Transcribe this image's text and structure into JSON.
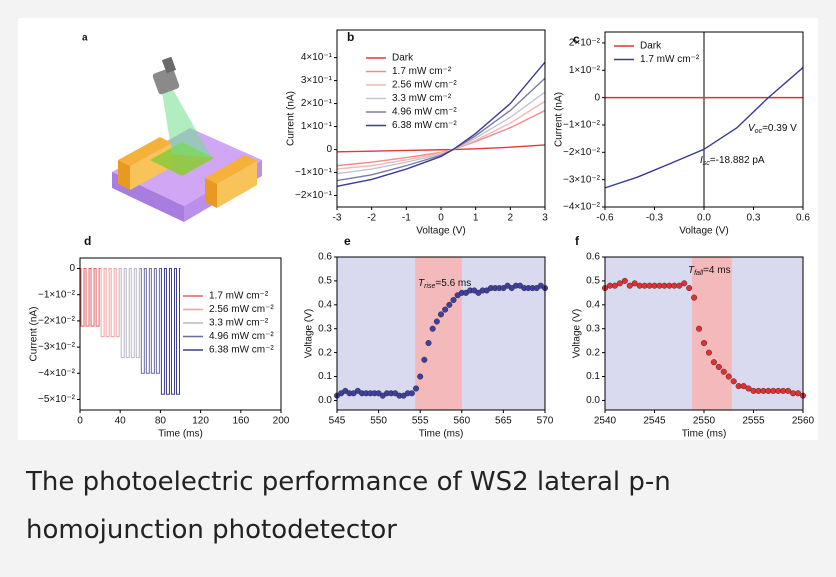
{
  "chart_data": [
    {
      "type": "line",
      "label": "b",
      "xlabel": "Voltage (V)",
      "ylabel": "Current (nA)",
      "xlim": [
        -3,
        3
      ],
      "ylim": [
        -0.25,
        0.52
      ],
      "xticks": [
        -3,
        -2,
        -1,
        0,
        1,
        2,
        3
      ],
      "yticks": [
        {
          "value": 0.4,
          "label": "4×10⁻¹"
        },
        {
          "value": 0.3,
          "label": "3×10⁻¹"
        },
        {
          "value": 0.2,
          "label": "2×10⁻¹"
        },
        {
          "value": 0.1,
          "label": "1×10⁻¹"
        },
        0,
        {
          "value": -0.1,
          "label": "−1×10⁻¹"
        },
        {
          "value": -0.2,
          "label": "−2×10⁻¹"
        }
      ],
      "x": [
        -3,
        -2,
        -1,
        0,
        0.35,
        1,
        2,
        3
      ],
      "series": [
        {
          "name": "Dark",
          "color": "#e03a3a",
          "values": [
            -0.01,
            -0.007,
            -0.004,
            -0.001,
            0,
            0.003,
            0.01,
            0.02
          ]
        },
        {
          "name": "1.7 mW cm⁻²",
          "color": "#f08a8a",
          "values": [
            -0.07,
            -0.055,
            -0.035,
            -0.012,
            0,
            0.035,
            0.095,
            0.17
          ]
        },
        {
          "name": "2.56 mW cm⁻²",
          "color": "#f4b7b7",
          "values": [
            -0.085,
            -0.07,
            -0.045,
            -0.015,
            0,
            0.04,
            0.115,
            0.21
          ]
        },
        {
          "name": "3.3 mW cm⁻²",
          "color": "#c4c4d0",
          "values": [
            -0.105,
            -0.085,
            -0.055,
            -0.02,
            0,
            0.05,
            0.14,
            0.25
          ]
        },
        {
          "name": "4.96 mW cm⁻²",
          "color": "#7a7aa8",
          "values": [
            -0.135,
            -0.11,
            -0.07,
            -0.025,
            0,
            0.06,
            0.17,
            0.31
          ]
        },
        {
          "name": "6.38 mW cm⁻²",
          "color": "#3c3c8c",
          "values": [
            -0.16,
            -0.13,
            -0.085,
            -0.03,
            0,
            0.07,
            0.2,
            0.38
          ]
        }
      ]
    },
    {
      "type": "line",
      "label": "c",
      "xlabel": "Voltage (V)",
      "ylabel": "Current (nA)",
      "xlim": [
        -0.6,
        0.6
      ],
      "ylim": [
        -0.04,
        0.024
      ],
      "xticks": [
        -0.6,
        -0.3,
        {
          "value": 0,
          "label": "0.0"
        },
        0.3,
        0.6
      ],
      "yticks": [
        {
          "value": 0.02,
          "label": "2×10⁻²"
        },
        {
          "value": 0.01,
          "label": "1×10⁻²"
        },
        0,
        {
          "value": -0.01,
          "label": "−1×10⁻²"
        },
        {
          "value": -0.02,
          "label": "−2×10⁻²"
        },
        {
          "value": -0.03,
          "label": "−3×10⁻²"
        },
        {
          "value": -0.04,
          "label": "−4×10⁻²"
        }
      ],
      "vline": 0,
      "series": [
        {
          "name": "Dark",
          "color": "#e03030",
          "x": [
            -0.6,
            0,
            0.6
          ],
          "values": [
            0,
            0,
            0
          ]
        },
        {
          "name": "1.7 mW cm⁻²",
          "color": "#3a3a90",
          "x": [
            -0.6,
            -0.4,
            -0.2,
            0,
            0.2,
            0.39,
            0.6
          ],
          "values": [
            -0.033,
            -0.029,
            -0.024,
            -0.0189,
            -0.011,
            0,
            0.011
          ]
        }
      ],
      "annotations": [
        [
          "V",
          "oc",
          "=0.39 V"
        ],
        [
          "I",
          "sc",
          "=-18.882 pA"
        ]
      ]
    },
    {
      "type": "line",
      "label": "d",
      "xlabel": "Time (ms)",
      "ylabel": "Current (nA)",
      "xlim": [
        0,
        200
      ],
      "ylim": [
        -0.054,
        0.004
      ],
      "xticks": [
        0,
        40,
        80,
        120,
        160,
        200
      ],
      "yticks": [
        0,
        {
          "value": -0.01,
          "label": "−1×10⁻²"
        },
        {
          "value": -0.02,
          "label": "−2×10⁻²"
        },
        {
          "value": -0.03,
          "label": "−3×10⁻²"
        },
        {
          "value": -0.04,
          "label": "−4×10⁻²"
        },
        {
          "value": -0.05,
          "label": "−5×10⁻²"
        }
      ],
      "series": [
        {
          "name": "1.7 mW cm⁻²",
          "color": "#e06060",
          "x": [
            0,
            1,
            1,
            4,
            4,
            6,
            6,
            9,
            9,
            11,
            11,
            14,
            14,
            16,
            16,
            19,
            19,
            20
          ],
          "values": [
            0,
            0,
            -0.022,
            -0.022,
            0,
            0,
            -0.022,
            -0.022,
            0,
            0,
            -0.022,
            -0.022,
            0,
            0,
            -0.022,
            -0.022,
            0,
            0
          ]
        },
        {
          "name": "2.56 mW cm⁻²",
          "color": "#f0a0a0",
          "x": [
            20,
            21,
            21,
            24,
            24,
            26,
            26,
            29,
            29,
            31,
            31,
            34,
            34,
            36,
            36,
            39,
            39,
            40
          ],
          "values": [
            0,
            0,
            -0.026,
            -0.026,
            0,
            0,
            -0.026,
            -0.026,
            0,
            0,
            -0.026,
            -0.026,
            0,
            0,
            -0.026,
            -0.026,
            0,
            0
          ]
        },
        {
          "name": "3.3 mW cm⁻²",
          "color": "#b8b8c8",
          "x": [
            40,
            41,
            41,
            44,
            44,
            46,
            46,
            49,
            49,
            51,
            51,
            54,
            54,
            56,
            56,
            59,
            59,
            60
          ],
          "values": [
            0,
            0,
            -0.034,
            -0.034,
            0,
            0,
            -0.034,
            -0.034,
            0,
            0,
            -0.034,
            -0.034,
            0,
            0,
            -0.034,
            -0.034,
            0,
            0
          ]
        },
        {
          "name": "4.96 mW cm⁻²",
          "color": "#6a6aa0",
          "x": [
            60,
            61,
            61,
            64,
            64,
            66,
            66,
            69,
            69,
            71,
            71,
            74,
            74,
            76,
            76,
            79,
            79,
            80
          ],
          "values": [
            0,
            0,
            -0.04,
            -0.04,
            0,
            0,
            -0.04,
            -0.04,
            0,
            0,
            -0.04,
            -0.04,
            0,
            0,
            -0.04,
            -0.04,
            0,
            0
          ]
        },
        {
          "name": "6.38 mW cm⁻²",
          "color": "#3a3a90",
          "x": [
            80,
            81,
            81,
            84,
            84,
            86,
            86,
            89,
            89,
            91,
            91,
            94,
            94,
            96,
            96,
            99,
            99,
            100
          ],
          "values": [
            0,
            0,
            -0.048,
            -0.048,
            0,
            0,
            -0.048,
            -0.048,
            0,
            0,
            -0.048,
            -0.048,
            0,
            0,
            -0.048,
            -0.048,
            0,
            0
          ]
        }
      ]
    },
    {
      "type": "scatter",
      "label": "e",
      "xlabel": "Time (ms)",
      "ylabel": "Voltage (V)",
      "xlim": [
        545,
        570
      ],
      "ylim": [
        -0.04,
        0.6
      ],
      "xticks": [
        545,
        550,
        555,
        560,
        565,
        570
      ],
      "yticks": [
        {
          "value": 0,
          "label": "0.0"
        },
        0.1,
        0.2,
        0.3,
        0.4,
        0.5,
        0.6
      ],
      "background": "#d9d9ef",
      "highlight": [
        554.4,
        560
      ],
      "highlight_color": "#f3b9bb",
      "annotations": [
        [
          "T",
          "rise",
          "=5.6 ms"
        ]
      ],
      "x": [
        545,
        545.5,
        546,
        546.5,
        547,
        547.5,
        548,
        548.5,
        549,
        549.5,
        550,
        550.5,
        551,
        551.5,
        552,
        552.5,
        553,
        553.5,
        554,
        554.5,
        555,
        555.5,
        556,
        556.5,
        557,
        557.5,
        558,
        558.5,
        559,
        559.5,
        560,
        560.5,
        561,
        561.5,
        562,
        562.5,
        563,
        563.5,
        564,
        564.5,
        565,
        565.5,
        566,
        566.5,
        567,
        567.5,
        568,
        568.5,
        569,
        569.5,
        570
      ],
      "series": [
        {
          "color": "#3f3fa0",
          "values": [
            0.02,
            0.03,
            0.04,
            0.03,
            0.03,
            0.04,
            0.03,
            0.03,
            0.03,
            0.03,
            0.03,
            0.02,
            0.03,
            0.03,
            0.03,
            0.02,
            0.02,
            0.03,
            0.03,
            0.05,
            0.1,
            0.17,
            0.24,
            0.3,
            0.33,
            0.36,
            0.38,
            0.4,
            0.42,
            0.44,
            0.45,
            0.45,
            0.46,
            0.46,
            0.45,
            0.46,
            0.46,
            0.47,
            0.47,
            0.47,
            0.47,
            0.48,
            0.47,
            0.48,
            0.48,
            0.47,
            0.47,
            0.47,
            0.47,
            0.48,
            0.47
          ]
        }
      ]
    },
    {
      "type": "scatter",
      "label": "f",
      "xlabel": "Time (ms)",
      "ylabel": "Voltage (V)",
      "xlim": [
        2540,
        2560
      ],
      "ylim": [
        -0.04,
        0.6
      ],
      "xticks": [
        2540,
        2545,
        2550,
        2555,
        2560
      ],
      "yticks": [
        {
          "value": 0,
          "label": "0.0"
        },
        0.1,
        0.2,
        0.3,
        0.4,
        0.5,
        0.6
      ],
      "background": "#d9d9ef",
      "highlight": [
        2548.8,
        2552.8
      ],
      "highlight_color": "#f3b9bb",
      "annotations": [
        [
          "T",
          "fall",
          "=4 ms"
        ]
      ],
      "x": [
        2540,
        2540.5,
        2541,
        2541.5,
        2542,
        2542.5,
        2543,
        2543.5,
        2544,
        2544.5,
        2545,
        2545.5,
        2546,
        2546.5,
        2547,
        2547.5,
        2548,
        2548.5,
        2549,
        2549.5,
        2550,
        2550.5,
        2551,
        2551.5,
        2552,
        2552.5,
        2553,
        2553.5,
        2554,
        2554.5,
        2555,
        2555.5,
        2556,
        2556.5,
        2557,
        2557.5,
        2558,
        2558.5,
        2559,
        2559.5,
        2560
      ],
      "series": [
        {
          "color": "#e03030",
          "values": [
            0.47,
            0.48,
            0.48,
            0.49,
            0.5,
            0.48,
            0.49,
            0.48,
            0.48,
            0.48,
            0.48,
            0.48,
            0.48,
            0.48,
            0.48,
            0.48,
            0.49,
            0.47,
            0.43,
            0.3,
            0.24,
            0.2,
            0.16,
            0.14,
            0.12,
            0.1,
            0.08,
            0.06,
            0.06,
            0.05,
            0.04,
            0.04,
            0.04,
            0.04,
            0.04,
            0.04,
            0.04,
            0.04,
            0.03,
            0.03,
            0.02
          ]
        }
      ]
    }
  ],
  "illustration": {
    "label": "a"
  },
  "caption": "The photoelectric performance of WS2 lateral p-n homojunction photodetector"
}
